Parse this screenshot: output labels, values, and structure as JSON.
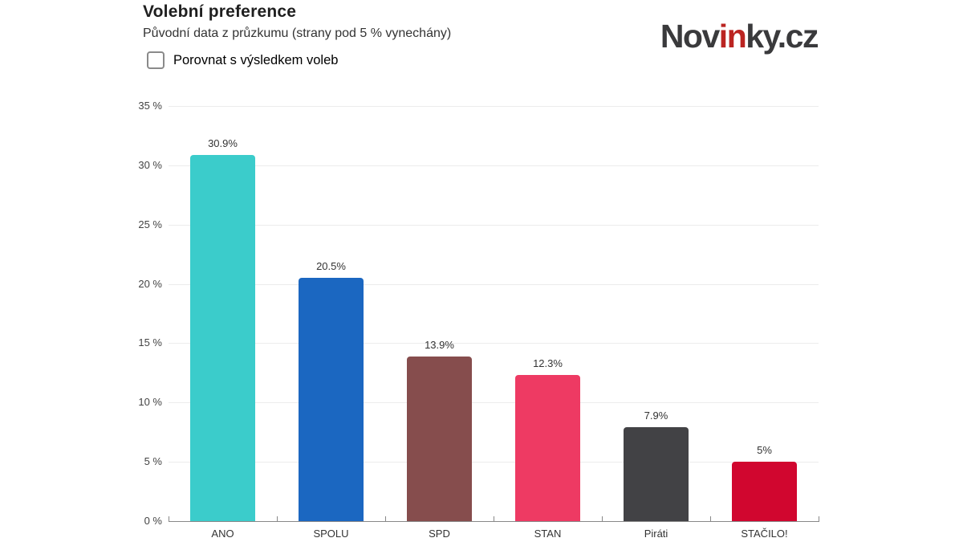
{
  "header": {
    "title": "Volební preference",
    "subtitle": "Původní data z průzkumu (strany pod 5 % vynechány)",
    "checkbox_label": "Porovnat s výsledkem voleb",
    "checkbox_checked": false
  },
  "logo": {
    "part1": "Nov",
    "part2": "in",
    "part3": "ky.cz",
    "dark_color": "#3a3a3c",
    "accent_color": "#bb2421"
  },
  "chart_data": {
    "type": "bar",
    "title": "Volební preference",
    "subtitle": "Původní data z průzkumu (strany pod 5 % vynechány)",
    "categories": [
      "ANO",
      "SPOLU",
      "SPD",
      "STAN",
      "Piráti",
      "STAČILO!"
    ],
    "values": [
      30.9,
      20.5,
      13.9,
      12.3,
      7.9,
      5
    ],
    "value_labels": [
      "30.9%",
      "20.5%",
      "13.9%",
      "12.3%",
      "7.9%",
      "5%"
    ],
    "bar_colors": [
      "#3bcccb",
      "#1b67c1",
      "#864d4d",
      "#ee3a63",
      "#424245",
      "#d1062f"
    ],
    "xlabel": "",
    "ylabel": "",
    "ylim": [
      0,
      35
    ],
    "ytick_step": 5,
    "ytick_labels": [
      "0 %",
      "5 %",
      "10 %",
      "15 %",
      "20 %",
      "25 %",
      "30 %",
      "35 %"
    ],
    "grid": true,
    "legend": false
  }
}
